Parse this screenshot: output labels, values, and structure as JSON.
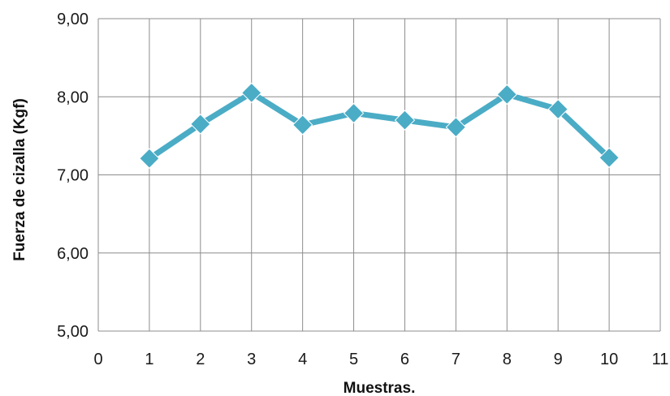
{
  "chart_data": {
    "type": "line",
    "title": "",
    "xlabel": "Muestras.",
    "ylabel": "Fuerza de cizalla (Kgf)",
    "xlim": [
      0,
      11
    ],
    "ylim": [
      5,
      9
    ],
    "x_ticks": [
      "0",
      "1",
      "2",
      "3",
      "4",
      "5",
      "6",
      "7",
      "8",
      "9",
      "10",
      "11"
    ],
    "y_ticks": [
      "5,00",
      "6,00",
      "7,00",
      "8,00",
      "9,00"
    ],
    "grid": true,
    "legend": "none",
    "series": [
      {
        "color": "#4BACC6",
        "marker": "diamond",
        "x": [
          1,
          2,
          3,
          4,
          5,
          6,
          7,
          8,
          9,
          10
        ],
        "values": [
          7.21,
          7.65,
          8.05,
          7.64,
          7.79,
          7.7,
          7.61,
          8.03,
          7.84,
          7.22
        ]
      }
    ]
  }
}
